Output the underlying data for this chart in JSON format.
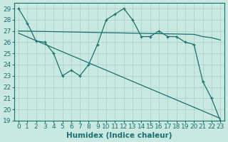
{
  "xlabel": "Humidex (Indice chaleur)",
  "xlim": [
    -0.5,
    23.5
  ],
  "ylim": [
    19,
    29.5
  ],
  "yticks": [
    19,
    20,
    21,
    22,
    23,
    24,
    25,
    26,
    27,
    28,
    29
  ],
  "xticks": [
    0,
    1,
    2,
    3,
    4,
    5,
    6,
    7,
    8,
    9,
    10,
    11,
    12,
    13,
    14,
    15,
    16,
    17,
    18,
    19,
    20,
    21,
    22,
    23
  ],
  "bg_color": "#c8e8e0",
  "grid_color": "#a8d4cc",
  "line_color": "#1a7070",
  "line1_x": [
    0,
    1,
    2,
    3,
    4,
    5,
    6,
    7,
    8,
    9,
    10,
    11,
    12,
    13,
    14,
    15,
    16,
    17,
    18,
    19,
    20,
    21,
    22,
    23
  ],
  "line1_y": [
    29,
    27.7,
    26.1,
    26.0,
    25.0,
    23.0,
    23.5,
    23.0,
    24.0,
    25.8,
    28.0,
    28.5,
    29.0,
    28.0,
    26.5,
    26.5,
    27.0,
    26.5,
    26.5,
    26.0,
    25.8,
    22.5,
    21.0,
    19.0
  ],
  "line2_x": [
    0,
    20,
    21,
    22,
    23
  ],
  "line2_y": [
    27.0,
    26.7,
    26.5,
    26.4,
    26.2
  ],
  "line3_x": [
    0,
    23
  ],
  "line3_y": [
    26.8,
    19.2
  ],
  "tick_fontsize": 6.5,
  "label_fontsize": 7.5
}
